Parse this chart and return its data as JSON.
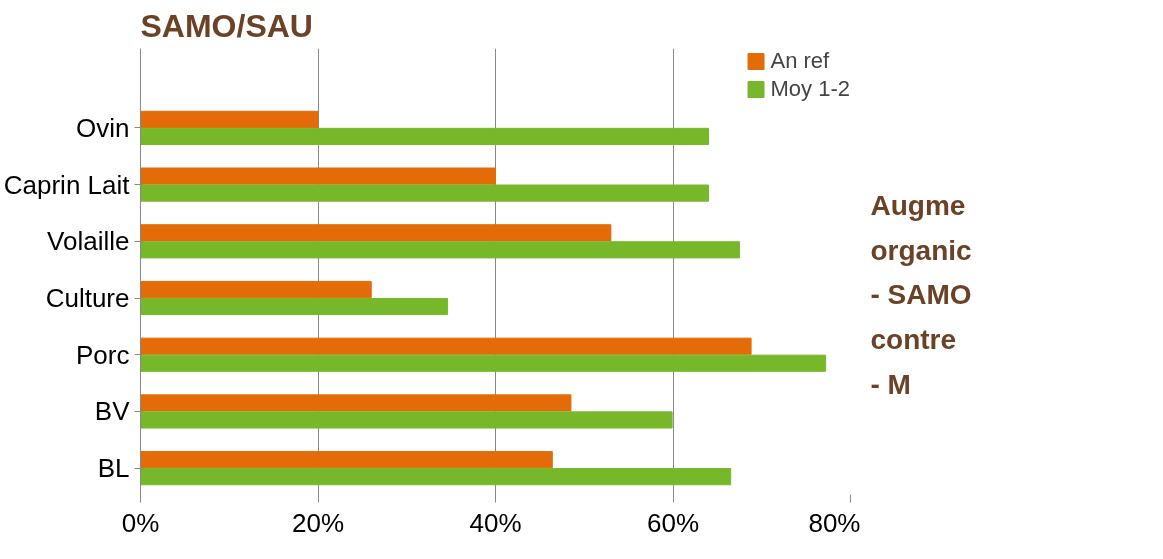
{
  "chart_data": {
    "type": "bar",
    "orientation": "horizontal",
    "title": "SAMO/SAU",
    "categories": [
      "Ovin",
      "Caprin Lait",
      "Volaille",
      "Culture",
      "Porc",
      "BV",
      "BL"
    ],
    "series": [
      {
        "name": "An ref",
        "color": "#e36c09",
        "values": [
          20,
          40,
          53,
          26,
          68.8,
          48.5,
          46.4
        ]
      },
      {
        "name": "Moy 1-2",
        "color": "#77b82a",
        "values": [
          64,
          64,
          67.5,
          34.6,
          77.2,
          59.9,
          66.5
        ]
      }
    ],
    "xlim": [
      0,
      80
    ],
    "xticks": [
      {
        "value": 0,
        "label": "0%"
      },
      {
        "value": 20,
        "label": "20%"
      },
      {
        "value": 40,
        "label": "40%"
      },
      {
        "value": 60,
        "label": "60%"
      },
      {
        "value": 80,
        "label": "80%"
      }
    ],
    "grid": "x",
    "legend": "top right",
    "annotations": [
      "Augme",
      "organic",
      "- SAMO",
      "contre",
      "- M"
    ]
  }
}
